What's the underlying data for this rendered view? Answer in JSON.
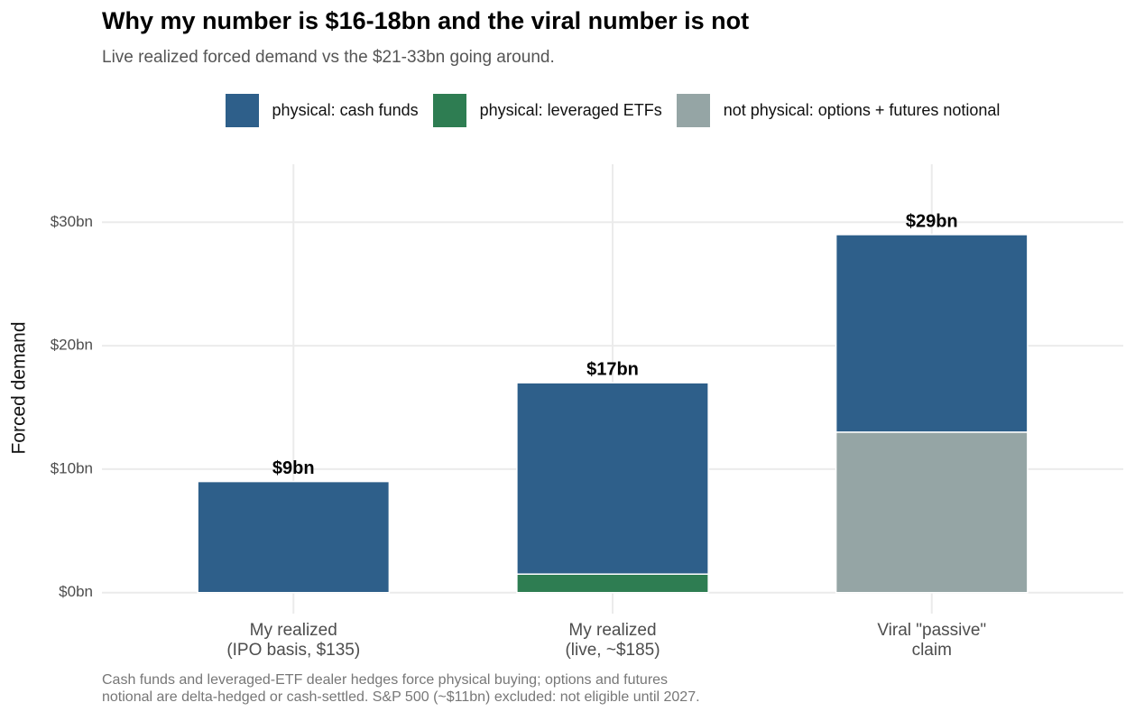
{
  "chart_data": {
    "type": "stacked_bar",
    "title": "Why my number is $16-18bn and the viral number is not",
    "subtitle": "Live realized forced demand vs the $21-33bn going around.",
    "y_label": "Forced demand",
    "caption": "Cash funds and leveraged-ETF dealer hedges force physical buying; options and futures\nnotional are delta-hedged or cash-settled. S&P 500 (~$11bn) excluded: not eligible until 2027.",
    "categories": [
      "My realized\n(IPO basis, $135)",
      "My realized\n(live, ~$185)",
      "Viral \"passive\"\nclaim"
    ],
    "series": [
      {
        "name": "physical: cash funds",
        "color": "#2e5f8a",
        "values": [
          9,
          15.5,
          16
        ]
      },
      {
        "name": "physical: leveraged ETFs",
        "color": "#2e7d52",
        "values": [
          0,
          1.5,
          0
        ]
      },
      {
        "name": "not physical: options + futures notional",
        "color": "#95a5a5",
        "values": [
          0,
          0,
          13
        ]
      }
    ],
    "totals": {
      "values": [
        9,
        17,
        29
      ],
      "value_labels": [
        "$9bn",
        "$17bn",
        "$29bn"
      ]
    },
    "ylim": [
      -1.7,
      34.7
    ],
    "yticks": [
      {
        "value": 0,
        "label": "$0bn"
      },
      {
        "value": 10,
        "label": "$10bn"
      },
      {
        "value": 20,
        "label": "$20bn"
      },
      {
        "value": 30,
        "label": "$30bn"
      }
    ],
    "grid": true,
    "legend": "top"
  }
}
